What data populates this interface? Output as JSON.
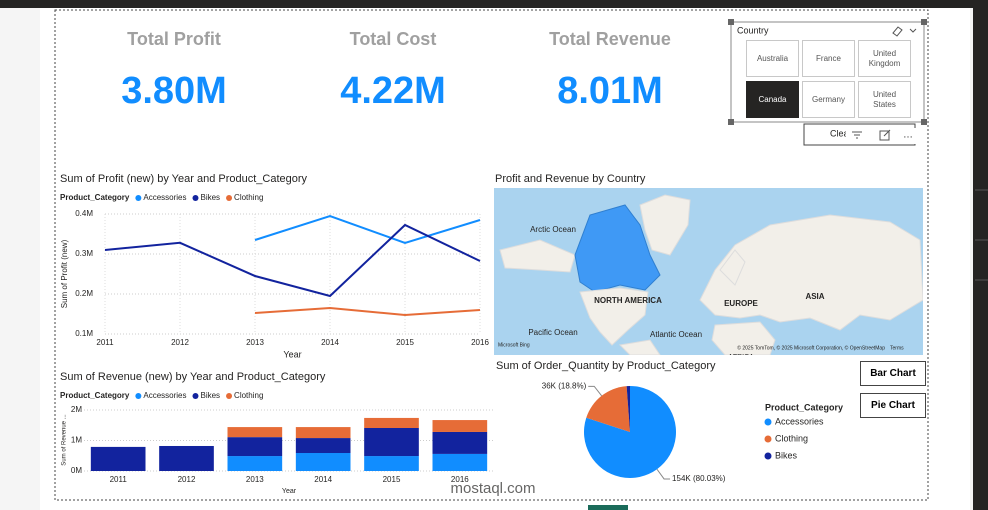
{
  "kpis": [
    {
      "label": "Total Profit",
      "value": "3.80M"
    },
    {
      "label": "Total Cost",
      "value": "4.22M"
    },
    {
      "label": "Total Revenue",
      "value": "8.01M"
    }
  ],
  "slicer": {
    "title": "Country",
    "options": [
      "Australia",
      "France",
      "United Kingdom",
      "Canada",
      "Germany",
      "United States"
    ],
    "selected": "Canada"
  },
  "clear_button": "Clear filter",
  "buttons": [
    "Bar Chart",
    "Pie Chart"
  ],
  "watermark": "mostaql.com",
  "chart_data": [
    {
      "type": "line",
      "title": "Sum of Profit (new) by Year and Product_Category",
      "legend_title": "Product_Category",
      "x_label": "Year",
      "y_label": "Sum of Profit (new)",
      "x": [
        2011,
        2012,
        2013,
        2014,
        2015,
        2016
      ],
      "xlim": [
        2011,
        2016
      ],
      "xticks": [
        2011,
        2012,
        2013,
        2014,
        2015,
        2016
      ],
      "ylim": [
        100000,
        400000
      ],
      "yticks": [
        {
          "value": 100000,
          "label": "0.1M"
        },
        {
          "value": 200000,
          "label": "0.2M"
        },
        {
          "value": 300000,
          "label": "0.3M"
        },
        {
          "value": 400000,
          "label": "0.4M"
        }
      ],
      "grid": true,
      "series": [
        {
          "name": "Accessories",
          "color": "#118dff",
          "values": [
            null,
            null,
            335000,
            395000,
            327500,
            385000
          ]
        },
        {
          "name": "Bikes",
          "color": "#12239e",
          "values": [
            310000,
            328000,
            245000,
            195000,
            372500,
            282500
          ]
        },
        {
          "name": "Clothing",
          "color": "#e66c37",
          "values": [
            null,
            null,
            152500,
            165000,
            147500,
            160000
          ]
        }
      ]
    },
    {
      "type": "map",
      "title": "Profit and Revenue by Country",
      "labels": [
        "Arctic Ocean",
        "NORTH AMERICA",
        "EUROPE",
        "ASIA",
        "Pacific Ocean",
        "Atlantic Ocean",
        "AFRICA",
        "Microsoft Bing",
        "© 2025 TomTom, © 2025 Microsoft Corporation, © OpenStreetMap",
        "Terms"
      ]
    },
    {
      "type": "bar",
      "title": "Sum of Revenue (new) by Year and Product_Category",
      "legend_title": "Product_Category",
      "x_label": "Year",
      "y_label": "Sum of Revenue ...",
      "categories": [
        "2011",
        "2012",
        "2013",
        "2014",
        "2015",
        "2016"
      ],
      "ylim": [
        0,
        2000000
      ],
      "yticks": [
        {
          "value": 0,
          "label": "0M"
        },
        {
          "value": 1000000,
          "label": "1M"
        },
        {
          "value": 2000000,
          "label": "2M"
        }
      ],
      "grid": true,
      "stacked": true,
      "series": [
        {
          "name": "Accessories",
          "color": "#118dff",
          "values": [
            null,
            null,
            490000,
            590000,
            490000,
            560000
          ]
        },
        {
          "name": "Bikes",
          "color": "#12239e",
          "values": [
            790000,
            820000,
            620000,
            490000,
            920000,
            720000
          ]
        },
        {
          "name": "Clothing",
          "color": "#e66c37",
          "values": [
            null,
            null,
            330000,
            360000,
            330000,
            390000
          ]
        }
      ]
    },
    {
      "type": "pie",
      "title": "Sum of Order_Quantity by Product_Category",
      "legend_title": "Product_Category",
      "categories": [
        "Accessories",
        "Clothing",
        "Bikes"
      ],
      "colors": [
        "#118dff",
        "#e66c37",
        "#12239e"
      ],
      "values": [
        154000,
        36200,
        2250
      ],
      "value_labels": [
        "154K (80.03%)",
        "36K (18.8%)",
        null
      ]
    }
  ]
}
